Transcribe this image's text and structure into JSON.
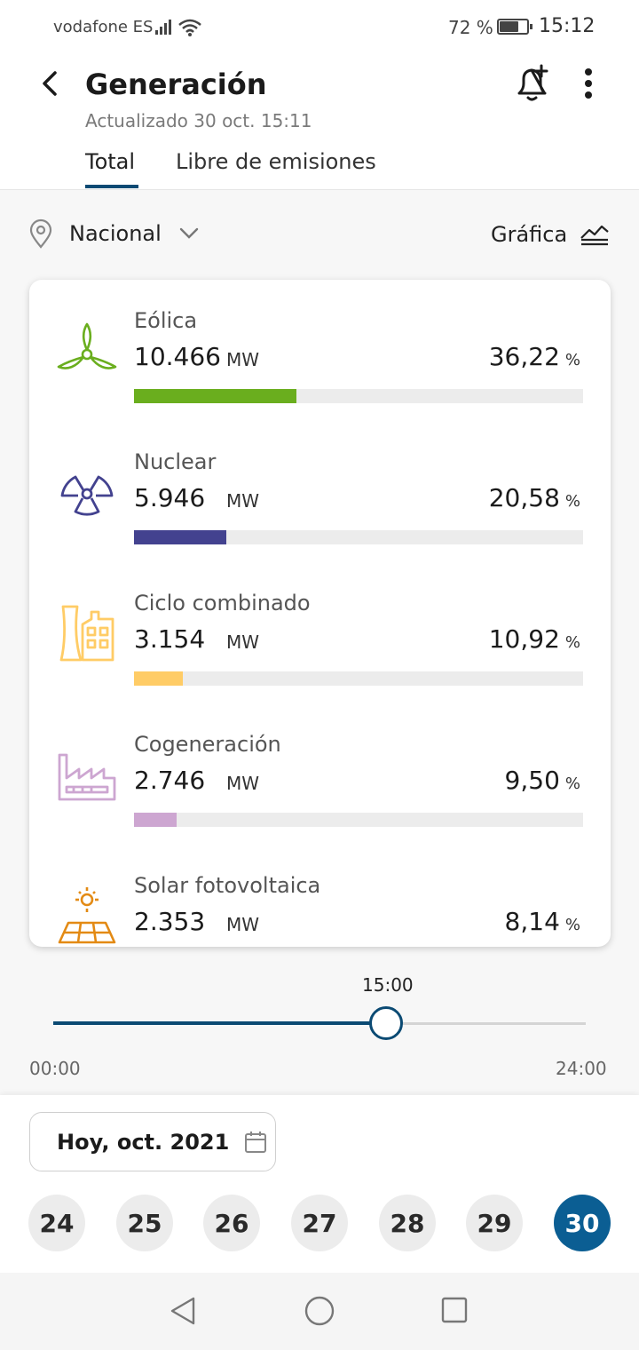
{
  "status_bar": {
    "carrier": "vodafone ES",
    "battery_percent": "72 %",
    "battery_level": 0.72,
    "time": "15:12"
  },
  "header": {
    "title": "Generación",
    "subtitle": "Actualizado 30 oct. 15:11",
    "tabs": [
      {
        "label": "Total",
        "selected": true
      },
      {
        "label": "Libre de emisiones",
        "selected": false
      }
    ],
    "icons": {
      "back": "back-arrow-icon",
      "alert": "add-alert-bell-icon",
      "menu": "more-vertical-icon"
    }
  },
  "filters": {
    "region": "Nacional",
    "view_toggle": "Gráfica"
  },
  "generation": [
    {
      "name": "Eólica",
      "mw": "10.466",
      "unit": "MW",
      "percent": "36,22",
      "percent_symbol": "%",
      "share": 36.22,
      "color": "#6aae1e",
      "icon": "wind-turbine-icon"
    },
    {
      "name": "Nuclear",
      "mw": "5.946",
      "unit": "MW",
      "percent": "20,58",
      "percent_symbol": "%",
      "share": 20.58,
      "color": "#43428f",
      "icon": "nuclear-icon"
    },
    {
      "name": "Ciclo combinado",
      "mw": "3.154",
      "unit": "MW",
      "percent": "10,92",
      "percent_symbol": "%",
      "share": 10.92,
      "color": "#ffcc66",
      "icon": "combined-cycle-plant-icon"
    },
    {
      "name": "Cogeneración",
      "mw": "2.746",
      "unit": "MW",
      "percent": "9,50",
      "percent_symbol": "%",
      "share": 9.5,
      "color": "#cda6d1",
      "icon": "cogeneration-factory-icon"
    },
    {
      "name": "Solar fotovoltaica",
      "mw": "2.353",
      "unit": "MW",
      "percent": "8,14",
      "percent_symbol": "%",
      "share": 8.14,
      "color": "#e38a14",
      "icon": "solar-panel-icon"
    }
  ],
  "time_slider": {
    "current": "15:00",
    "start": "00:00",
    "end": "24:00",
    "value_hours": 15,
    "max_hours": 24
  },
  "date": {
    "label": "Hoy, oct. 2021",
    "days": [
      "24",
      "25",
      "26",
      "27",
      "28",
      "29",
      "30"
    ],
    "selected_day": "30"
  },
  "colors": {
    "accent": "#0b4a73",
    "selected_day": "#0b5e93"
  }
}
